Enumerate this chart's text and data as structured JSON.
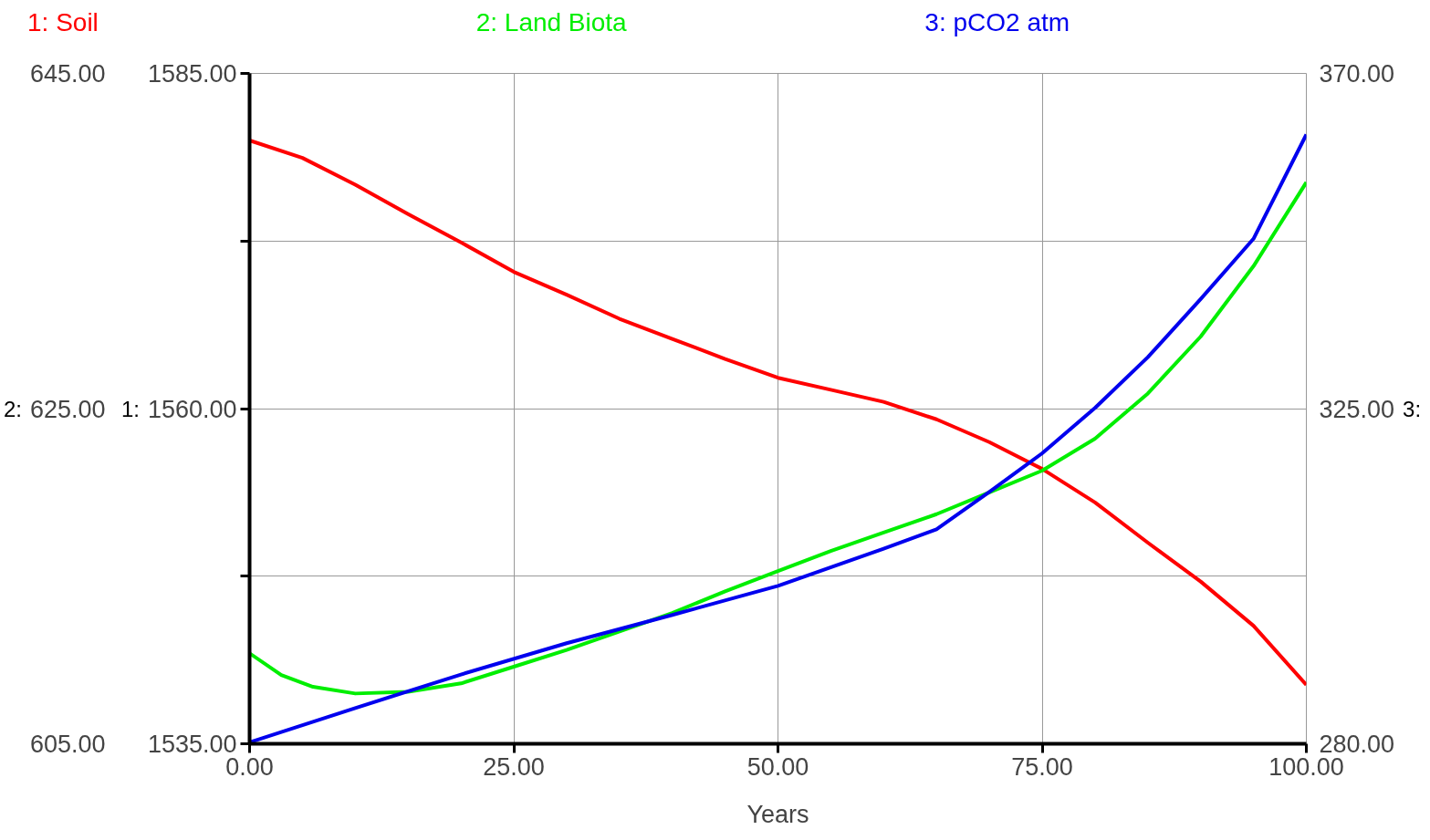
{
  "chart_data": {
    "type": "line",
    "xlabel": "Years",
    "legend": "top",
    "grid": true,
    "marker": "none",
    "line_style": "solid",
    "x": [
      0,
      5,
      10,
      15,
      20,
      25,
      30,
      35,
      40,
      45,
      50,
      55,
      60,
      65,
      70,
      75,
      80,
      85,
      90,
      95,
      100
    ],
    "xlim": [
      0,
      100
    ],
    "xticks": [
      {
        "value": 0,
        "label": "0.00"
      },
      {
        "value": 25,
        "label": "25.00"
      },
      {
        "value": 50,
        "label": "50.00"
      },
      {
        "value": 75,
        "label": "75.00"
      },
      {
        "value": 100,
        "label": "100.00"
      }
    ],
    "ylim": [
      1535,
      1585
    ],
    "ylabel": "1:",
    "y2label": "2:",
    "y3label": "3:",
    "yticks": [
      {
        "value": 1535,
        "label": "1535.00"
      },
      {
        "value": 1547.5,
        "label": null
      },
      {
        "value": 1560,
        "label": "1560.00"
      },
      {
        "value": 1572.5,
        "label": null
      },
      {
        "value": 1585,
        "label": "1585.00"
      }
    ],
    "y2lim": [
      605,
      645
    ],
    "y2ticks": [
      {
        "value": 605,
        "label": "605.00"
      },
      {
        "value": 615,
        "label": null
      },
      {
        "value": 625,
        "label": "625.00"
      },
      {
        "value": 635,
        "label": null
      },
      {
        "value": 645,
        "label": "645.00"
      }
    ],
    "y3lim": [
      280,
      370
    ],
    "y3ticks": [
      {
        "value": 280,
        "label": "280.00"
      },
      {
        "value": 302.5,
        "label": null
      },
      {
        "value": 325,
        "label": "325.00"
      },
      {
        "value": 347.5,
        "label": null
      },
      {
        "value": 370,
        "label": "370.00"
      }
    ],
    "series": [
      {
        "name": "1: Soil",
        "color": "#ff0000",
        "axis": "y",
        "values": [
          1580.0,
          1578.7,
          1576.7,
          1574.5,
          1572.4,
          1570.2,
          1568.5,
          1566.7,
          1565.2,
          1563.7,
          1562.3,
          1561.4,
          1560.5,
          1559.2,
          1557.5,
          1555.5,
          1553.0,
          1550.0,
          1547.1,
          1543.8,
          1539.4
        ]
      },
      {
        "name": "2: Land Biota",
        "color": "#00ee00",
        "axis": "y2",
        "x": [
          0,
          3,
          6,
          10,
          15,
          20,
          25,
          30,
          35,
          40,
          45,
          50,
          55,
          60,
          65,
          70,
          75,
          80,
          85,
          90,
          95,
          100
        ],
        "values": [
          610.4,
          609.1,
          608.4,
          608.0,
          608.1,
          608.6,
          609.6,
          610.6,
          611.7,
          612.8,
          614.1,
          615.3,
          616.5,
          617.6,
          618.7,
          620.0,
          621.3,
          623.2,
          625.9,
          629.3,
          633.5,
          638.5
        ]
      },
      {
        "name": "3: pCO2 atm",
        "color": "#0000ee",
        "axis": "y3",
        "x": [
          0,
          10,
          20,
          30,
          40,
          50,
          60,
          65,
          70,
          75,
          80,
          85,
          90,
          95,
          100
        ],
        "values": [
          280.2,
          284.8,
          289.3,
          293.5,
          297.3,
          301.2,
          306.2,
          308.8,
          313.8,
          319.0,
          325.1,
          331.9,
          339.7,
          347.8,
          361.8
        ]
      }
    ]
  }
}
